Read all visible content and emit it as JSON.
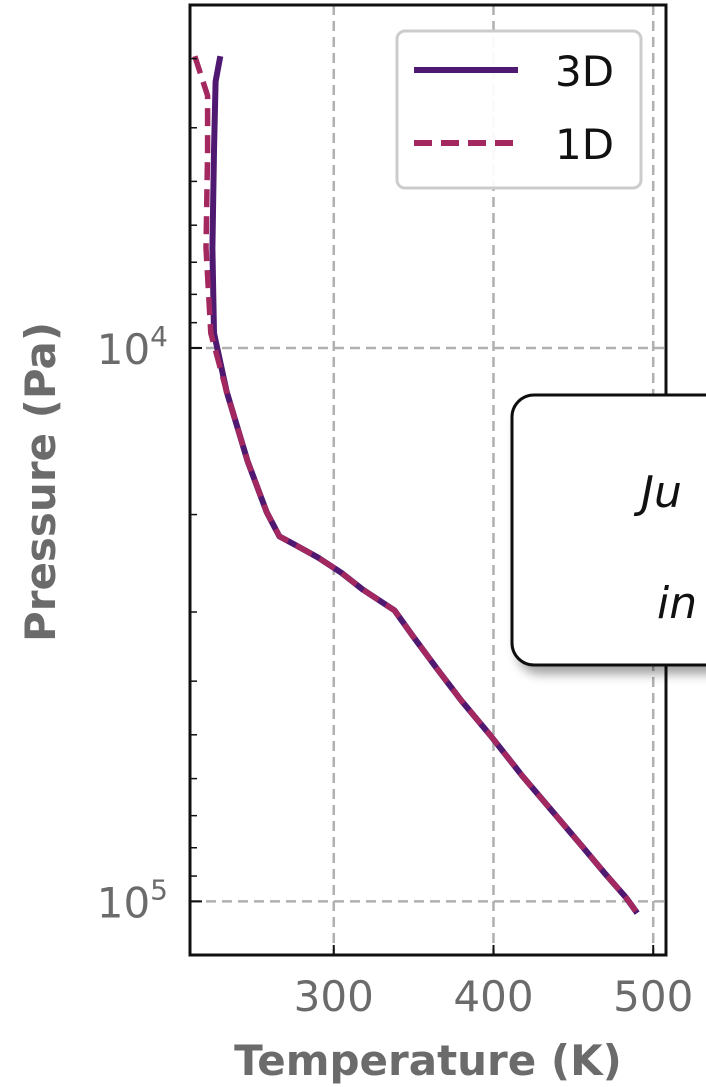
{
  "chart_data": {
    "type": "line",
    "xlabel": "Temperature (K)",
    "ylabel": "Pressure (Pa)",
    "xlim": [
      210,
      508
    ],
    "ylim_log": [
      2400,
      125000
    ],
    "y_scale": "log",
    "y_inverted": true,
    "grid": true,
    "x_ticks": [
      {
        "value": 300,
        "label": "300"
      },
      {
        "value": 400,
        "label": "400"
      },
      {
        "value": 500,
        "label": "500"
      }
    ],
    "y_ticks": [
      {
        "value": 10000,
        "base": "10",
        "exp": "4"
      },
      {
        "value": 100000,
        "base": "10",
        "exp": "5"
      }
    ],
    "legend_position": "top-right",
    "series": [
      {
        "name": "3D",
        "color": "#4f1871",
        "style": "solid",
        "points": [
          [
            229,
            2970
          ],
          [
            226,
            3300
          ],
          [
            225,
            4400
          ],
          [
            224,
            6600
          ],
          [
            225,
            9400
          ],
          [
            233,
            12000
          ],
          [
            246,
            16000
          ],
          [
            258,
            19800
          ],
          [
            266,
            21900
          ],
          [
            276,
            22700
          ],
          [
            290,
            23900
          ],
          [
            305,
            25500
          ],
          [
            318,
            27300
          ],
          [
            338,
            29800
          ],
          [
            350,
            33300
          ],
          [
            365,
            38100
          ],
          [
            380,
            43400
          ],
          [
            398,
            50100
          ],
          [
            418,
            59300
          ],
          [
            436,
            68300
          ],
          [
            455,
            79200
          ],
          [
            470,
            89200
          ],
          [
            483,
            98500
          ],
          [
            490,
            105000
          ]
        ]
      },
      {
        "name": "1D",
        "color": "#a3285f",
        "style": "dashed",
        "points": [
          [
            213,
            2970
          ],
          [
            221,
            3500
          ],
          [
            221,
            4400
          ],
          [
            220,
            6600
          ],
          [
            223,
            9400
          ],
          [
            233,
            12000
          ],
          [
            246,
            16000
          ],
          [
            258,
            19800
          ],
          [
            266,
            21900
          ],
          [
            276,
            22700
          ],
          [
            290,
            23900
          ],
          [
            305,
            25500
          ],
          [
            318,
            27300
          ],
          [
            338,
            29800
          ],
          [
            350,
            33300
          ],
          [
            365,
            38100
          ],
          [
            380,
            43400
          ],
          [
            398,
            50100
          ],
          [
            418,
            59300
          ],
          [
            436,
            68300
          ],
          [
            455,
            79200
          ],
          [
            470,
            89200
          ],
          [
            483,
            98500
          ],
          [
            490,
            105000
          ]
        ]
      }
    ],
    "annotation_lines": [
      "Ju",
      "in"
    ]
  }
}
